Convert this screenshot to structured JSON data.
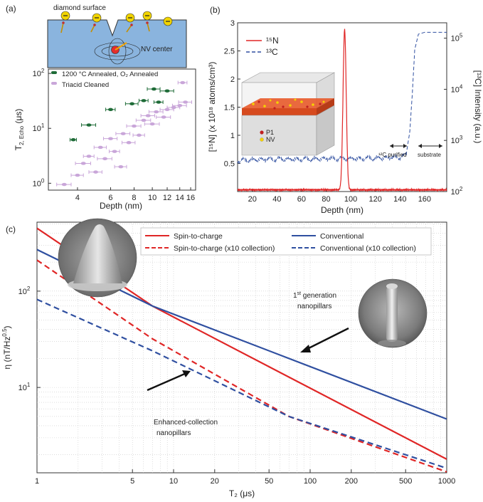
{
  "chart_data": [
    {
      "panel_label": "(a)",
      "type": "scatter",
      "schematic": {
        "top_label": "diamond surface",
        "nv_label": "NV center"
      },
      "xlabel": "Depth (nm)",
      "ylabel_main": "T",
      "ylabel_sub": "2, Echo",
      "ylabel_unit": " (μs)",
      "xscale": "log",
      "yscale": "log",
      "xlim": [
        2.8,
        17
      ],
      "ylim": [
        0.75,
        120
      ],
      "x_ticks": [
        4,
        6,
        8,
        10,
        12,
        14,
        16
      ],
      "x_tick_labels": [
        "4",
        "6",
        "8",
        "10",
        "12",
        "14",
        "16"
      ],
      "y_ticks": [
        1,
        10,
        100
      ],
      "y_tick_base": "10",
      "y_tick_exps": [
        "0",
        "1",
        "2"
      ],
      "legend": [
        {
          "label": "1200 °C Annealed, O₂ Annealed",
          "color": "#1e6b37"
        },
        {
          "label": "Triacid Cleaned",
          "color": "#c9a6d9"
        }
      ],
      "series": [
        {
          "name": "1200 °C Annealed, O₂ Annealed",
          "color": "#1e6b37",
          "points": [
            {
              "x": 3.8,
              "y": 6.2,
              "xerr": 0.15
            },
            {
              "x": 4.6,
              "y": 11.5,
              "xerr": 0.4
            },
            {
              "x": 6.0,
              "y": 22,
              "xerr": 0.35
            },
            {
              "x": 7.8,
              "y": 28,
              "xerr": 0.6
            },
            {
              "x": 9.0,
              "y": 32,
              "xerr": 0.5
            },
            {
              "x": 10.2,
              "y": 52,
              "xerr": 0.8
            },
            {
              "x": 10.8,
              "y": 30,
              "xerr": 0.6
            },
            {
              "x": 12.0,
              "y": 48,
              "xerr": 1.0
            }
          ]
        },
        {
          "name": "Triacid Cleaned",
          "color": "#c9a6d9",
          "points": [
            {
              "x": 3.4,
              "y": 0.95,
              "xerr": 0.3
            },
            {
              "x": 4.0,
              "y": 1.4,
              "xerr": 0.3
            },
            {
              "x": 4.3,
              "y": 2.3,
              "xerr": 0.4
            },
            {
              "x": 4.6,
              "y": 3.1,
              "xerr": 0.3
            },
            {
              "x": 5.0,
              "y": 1.6,
              "xerr": 0.4
            },
            {
              "x": 5.3,
              "y": 4.5,
              "xerr": 0.4
            },
            {
              "x": 5.6,
              "y": 2.8,
              "xerr": 0.5
            },
            {
              "x": 6.0,
              "y": 6.5,
              "xerr": 0.5
            },
            {
              "x": 6.3,
              "y": 3.8,
              "xerr": 0.4
            },
            {
              "x": 6.8,
              "y": 2.0,
              "xerr": 0.5
            },
            {
              "x": 7.0,
              "y": 8.0,
              "xerr": 0.6
            },
            {
              "x": 7.5,
              "y": 5.5,
              "xerr": 0.6
            },
            {
              "x": 8.0,
              "y": 11,
              "xerr": 0.7
            },
            {
              "x": 8.5,
              "y": 7.5,
              "xerr": 0.6
            },
            {
              "x": 9.0,
              "y": 14,
              "xerr": 0.8
            },
            {
              "x": 9.5,
              "y": 17,
              "xerr": 0.8
            },
            {
              "x": 10.0,
              "y": 12,
              "xerr": 0.9
            },
            {
              "x": 10.5,
              "y": 20,
              "xerr": 0.9
            },
            {
              "x": 11.5,
              "y": 16,
              "xerr": 1.0
            },
            {
              "x": 12.0,
              "y": 22,
              "xerr": 1.0
            },
            {
              "x": 13.0,
              "y": 24,
              "xerr": 1.0
            },
            {
              "x": 14.0,
              "y": 26,
              "xerr": 1.2
            },
            {
              "x": 15.0,
              "y": 30,
              "xerr": 1.2
            },
            {
              "x": 14.5,
              "y": 68,
              "xerr": 0.8
            }
          ]
        }
      ]
    },
    {
      "panel_label": "(b)",
      "type": "line",
      "xlabel": "Depth (nm)",
      "ylabel_left": "[¹⁵N] (x 10¹⁸ atoms/cm³)",
      "ylabel_right": "[¹³C] Intensity (a.u.)",
      "xlim": [
        8,
        178
      ],
      "ylim_left": [
        0,
        3
      ],
      "ylim_right_log": [
        100,
        200000
      ],
      "x_ticks": [
        20,
        40,
        60,
        80,
        100,
        120,
        140,
        160
      ],
      "x_tick_labels": [
        "20",
        "40",
        "60",
        "80",
        "100",
        "120",
        "140",
        "160"
      ],
      "y_ticks_left": [
        0.5,
        1,
        1.5,
        2,
        2.5,
        3
      ],
      "y_tick_labels_left": [
        "0.5",
        "1",
        "1.5",
        "2",
        "2.5",
        "3"
      ],
      "y_ticks_right": [
        100,
        1000,
        10000,
        100000
      ],
      "y_tick_base_right": "10",
      "y_tick_exps_right": [
        "2",
        "3",
        "4",
        "5"
      ],
      "legend": [
        {
          "label": "¹⁵N",
          "color": "#e02626",
          "dash": "solid"
        },
        {
          "label": "¹³C",
          "color": "#2f4fa0",
          "dash": "dashed"
        }
      ],
      "inset_labels": [
        "P1",
        "NV"
      ],
      "annotations": [
        "¹²C purified",
        "substrate"
      ],
      "series_N15": {
        "center": 95,
        "peak": 2.85,
        "width": 1.3,
        "baseline": 0.03
      },
      "series_C13": {
        "x": [
          8,
          20,
          40,
          60,
          80,
          100,
          120,
          140,
          145,
          148,
          150,
          152,
          155,
          160,
          170,
          178
        ],
        "y": [
          400,
          420,
          430,
          430,
          440,
          440,
          450,
          470,
          520,
          1500,
          8000,
          60000,
          120000,
          130000,
          130000,
          130000
        ]
      }
    },
    {
      "panel_label": "(c)",
      "type": "line",
      "xlabel": "T₂ (μs)",
      "ylabel_main": "η (nT/Hz",
      "ylabel_sup": "0.5",
      "ylabel_end": ")",
      "xscale": "log",
      "yscale": "log",
      "xlim": [
        1,
        1000
      ],
      "ylim": [
        1.3,
        520
      ],
      "x_ticks": [
        1,
        5,
        10,
        20,
        50,
        100,
        200,
        500,
        1000
      ],
      "x_tick_labels": [
        "1",
        "5",
        "10",
        "20",
        "50",
        "100",
        "200",
        "500",
        "1000"
      ],
      "y_ticks": [
        10,
        100
      ],
      "y_tick_base": "10",
      "y_tick_exps": [
        "1",
        "2"
      ],
      "legend": [
        {
          "label": "Spin-to-charge",
          "color": "#e02626",
          "dash": "solid"
        },
        {
          "label": "Conventional",
          "color": "#2f4fa0",
          "dash": "solid"
        },
        {
          "label": "Spin-to-charge (x10 collection)",
          "color": "#e02626",
          "dash": "dashed"
        },
        {
          "label": "Conventional (x10 collection)",
          "color": "#2f4fa0",
          "dash": "dashed"
        }
      ],
      "series": [
        {
          "name": "Spin-to-charge",
          "color": "#e02626",
          "dash": "solid",
          "x": [
            1,
            7,
            1000
          ],
          "y": [
            450,
            70,
            1.8
          ]
        },
        {
          "name": "Conventional",
          "color": "#2f4fa0",
          "dash": "solid",
          "x": [
            1,
            7,
            1000
          ],
          "y": [
            270,
            70,
            4.7
          ]
        },
        {
          "name": "Spin-to-charge (x10 collection)",
          "color": "#e02626",
          "dash": "dashed",
          "x": [
            1,
            7,
            70,
            1000
          ],
          "y": [
            210,
            32,
            5.0,
            1.33
          ]
        },
        {
          "name": "Conventional (x10 collection)",
          "color": "#2f4fa0",
          "dash": "dashed",
          "x": [
            1,
            7,
            70,
            1000
          ],
          "y": [
            82,
            24,
            5.0,
            1.45
          ]
        }
      ],
      "annotations": {
        "first_gen": {
          "sup": "st",
          "line1": "1",
          "line1_rest": " generation",
          "line2": "nanopillars"
        },
        "enhanced": {
          "line1": "Enhanced-collection",
          "line2": "nanopillars"
        }
      }
    }
  ]
}
